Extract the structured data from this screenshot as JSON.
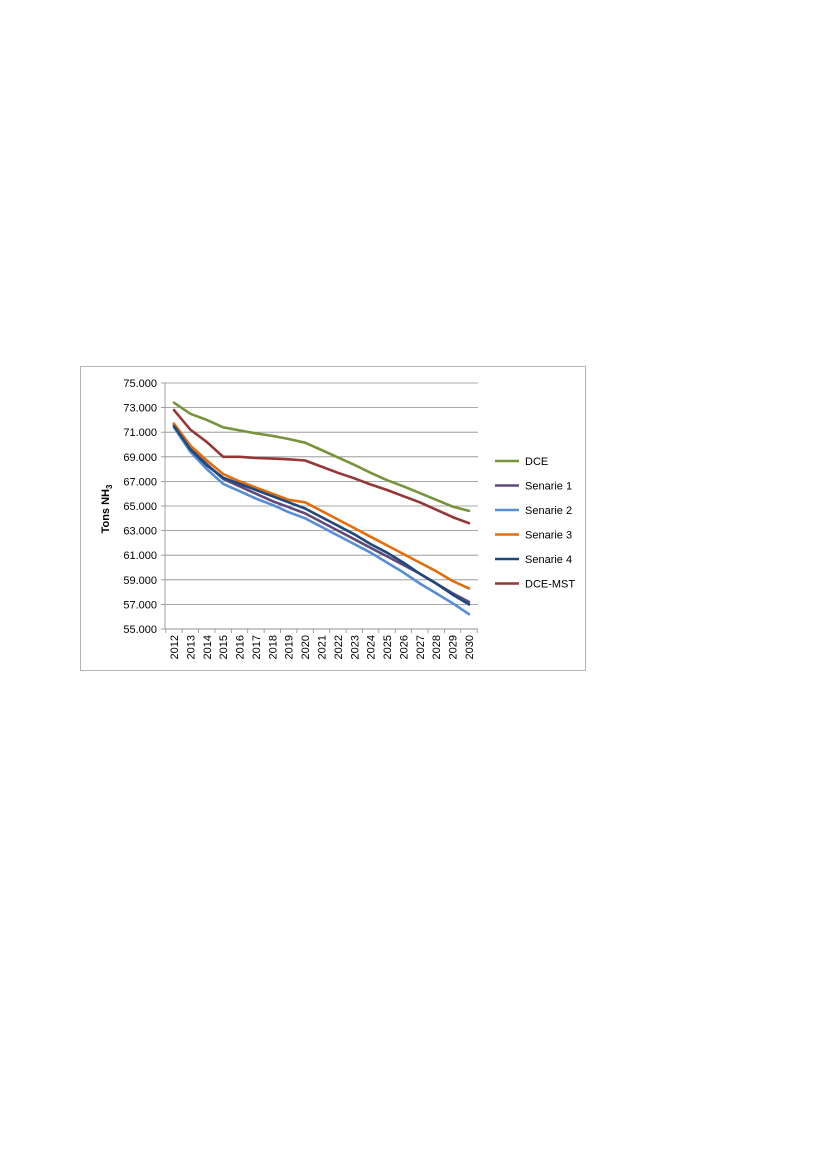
{
  "chart_data": {
    "type": "line",
    "title": "",
    "xlabel": "",
    "ylabel": "Tons NH",
    "ylabel_subscript": "3",
    "x": [
      "2012",
      "2013",
      "2014",
      "2015",
      "2016",
      "2017",
      "2018",
      "2019",
      "2020",
      "2021",
      "2022",
      "2023",
      "2024",
      "2025",
      "2026",
      "2027",
      "2028",
      "2029",
      "2030"
    ],
    "ylim": [
      55000,
      75000
    ],
    "yticks": [
      55000,
      57000,
      59000,
      61000,
      63000,
      65000,
      67000,
      69000,
      71000,
      73000,
      75000
    ],
    "ytick_labels": [
      "55.000",
      "57.000",
      "59.000",
      "61.000",
      "63.000",
      "65.000",
      "67.000",
      "69.000",
      "71.000",
      "73.000",
      "75.000"
    ],
    "grid": true,
    "legend_position": "right",
    "series": [
      {
        "name": "DCE",
        "color": "#77933c",
        "values": [
          73400,
          72500,
          72000,
          71400,
          71150,
          70900,
          70700,
          70450,
          70150,
          69550,
          68950,
          68350,
          67700,
          67100,
          66600,
          66050,
          65500,
          64950,
          64600
        ]
      },
      {
        "name": "Senarie 1",
        "color": "#604a7b",
        "values": [
          71600,
          69700,
          68400,
          67200,
          66600,
          66000,
          65400,
          64900,
          64400,
          63700,
          63000,
          62300,
          61600,
          60900,
          60200,
          59500,
          58700,
          57900,
          57200
        ]
      },
      {
        "name": "Senarie 2",
        "color": "#558ed5",
        "values": [
          71400,
          69400,
          68000,
          66800,
          66200,
          65600,
          65100,
          64500,
          64000,
          63300,
          62600,
          61900,
          61200,
          60400,
          59600,
          58700,
          57900,
          57100,
          56200
        ]
      },
      {
        "name": "Senarie 3",
        "color": "#e46c0a",
        "values": [
          71700,
          69900,
          68700,
          67600,
          67000,
          66500,
          66000,
          65500,
          65300,
          64600,
          63900,
          63200,
          62500,
          61800,
          61100,
          60400,
          59700,
          58900,
          58300
        ]
      },
      {
        "name": "Senarie 4",
        "color": "#1f497d",
        "values": [
          71500,
          69600,
          68300,
          67300,
          66800,
          66300,
          65800,
          65300,
          64800,
          64100,
          63400,
          62700,
          61900,
          61200,
          60400,
          59500,
          58700,
          57800,
          57000
        ]
      },
      {
        "name": "DCE-MST",
        "color": "#953735",
        "values": [
          72800,
          71200,
          70200,
          69000,
          69000,
          68900,
          68850,
          68800,
          68700,
          68200,
          67700,
          67250,
          66750,
          66300,
          65800,
          65300,
          64700,
          64100,
          63600
        ]
      }
    ]
  }
}
